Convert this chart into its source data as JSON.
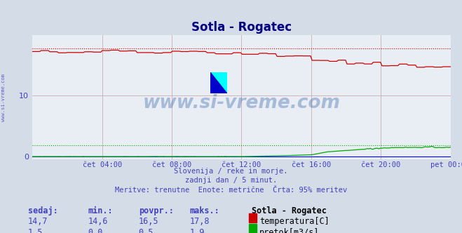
{
  "title": "Sotla - Rogatec",
  "bg_color": "#d4dce8",
  "plot_bg_color": "#e8eef4",
  "grid_color": "#c8a0a0",
  "tick_color": "#4040c0",
  "title_color": "#000080",
  "watermark_text": "www.si-vreme.com",
  "watermark_color": "#2050a0",
  "subtitle_lines": [
    "Slovenija / reke in morje.",
    "zadnji dan / 5 minut.",
    "Meritve: trenutne  Enote: metrične  Črta: 95% meritev"
  ],
  "x_tick_labels": [
    "čet 04:00",
    "čet 08:00",
    "čet 12:00",
    "čet 16:00",
    "čet 20:00",
    "pet 00:00"
  ],
  "x_tick_positions": [
    0.167,
    0.333,
    0.5,
    0.667,
    0.833,
    1.0
  ],
  "ylim": [
    -0.5,
    20
  ],
  "y_ticks": [
    0,
    10
  ],
  "temp_color": "#cc0000",
  "flow_color": "#00aa00",
  "temp_95_value": 17.8,
  "flow_95_value": 1.9,
  "legend_title": "Sotla - Rogatec",
  "legend_items": [
    {
      "label": "temperatura[C]",
      "color": "#cc0000"
    },
    {
      "label": "pretok[m3/s]",
      "color": "#00aa00"
    }
  ],
  "table_headers": [
    "sedaj:",
    "min.:",
    "povpr.:",
    "maks.:"
  ],
  "table_row1": [
    "14,7",
    "14,6",
    "16,5",
    "17,8"
  ],
  "table_row2": [
    "1,5",
    "0,0",
    "0,5",
    "1,9"
  ]
}
